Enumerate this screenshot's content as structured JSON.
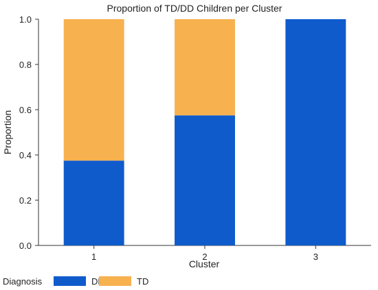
{
  "chart_data": {
    "type": "bar",
    "stacked": true,
    "title": "Proportion of TD/DD Children per Cluster",
    "xlabel": "Cluster",
    "ylabel": "Proportion",
    "categories": [
      "1",
      "2",
      "3"
    ],
    "ylim": [
      0,
      1
    ],
    "yticks": [
      "0.0",
      "0.2",
      "0.4",
      "0.6",
      "0.8",
      "1.0"
    ],
    "series": [
      {
        "name": "DD",
        "color": "#0f5bcc",
        "values": [
          0.375,
          0.575,
          1.0
        ]
      },
      {
        "name": "TD",
        "color": "#f7b14f",
        "values": [
          0.625,
          0.425,
          0.0
        ]
      }
    ],
    "legend": {
      "title": "Diagnosis",
      "placement": "bottom-left"
    },
    "grid": false
  }
}
